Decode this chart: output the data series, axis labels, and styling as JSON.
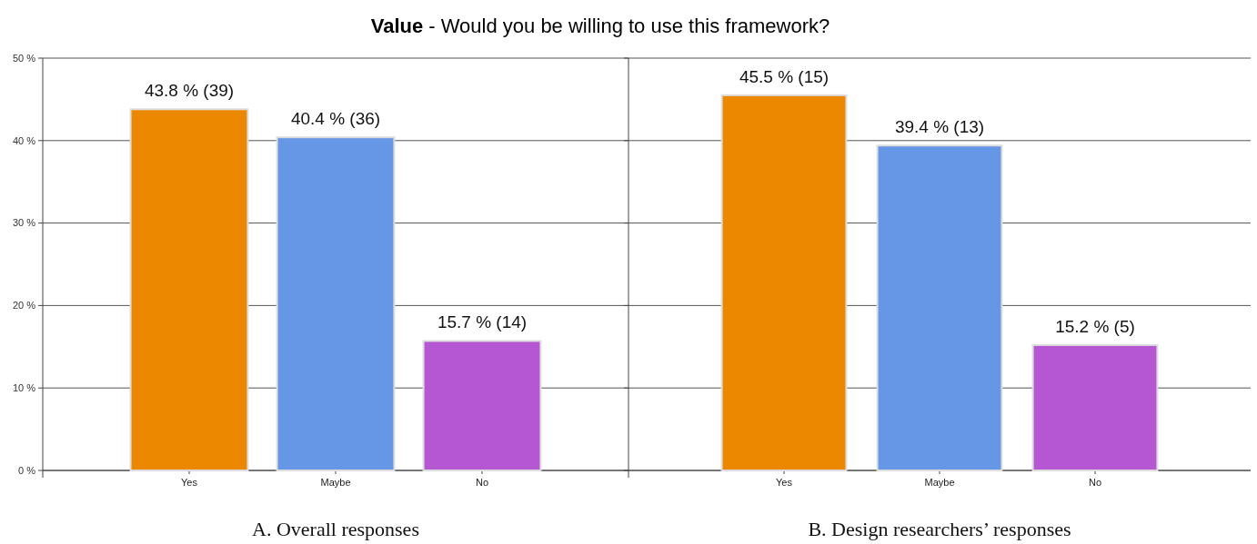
{
  "chart_data": [
    {
      "type": "bar",
      "title": "Value - Would you be willing to use this framework?",
      "xlabel": "A. Overall responses",
      "categories": [
        "Yes",
        "Maybe",
        "No"
      ],
      "values": [
        43.8,
        40.4,
        15.7
      ],
      "value_labels": [
        "43.8 % (39)",
        "40.4 % (36)",
        "15.7 % (14)"
      ],
      "colors": [
        "#ec8800",
        "#6597e6",
        "#b556d2"
      ],
      "ylim": [
        0,
        50
      ],
      "yticks": [
        {
          "value": 0,
          "label": "0 %"
        },
        {
          "value": 10,
          "label": "10 %"
        },
        {
          "value": 20,
          "label": "20 %"
        },
        {
          "value": 30,
          "label": "30 %"
        },
        {
          "value": 40,
          "label": "40 %"
        },
        {
          "value": 50,
          "label": "50 %"
        }
      ],
      "grid": "y"
    },
    {
      "type": "bar",
      "xlabel": "B. Design researchers’ responses",
      "categories": [
        "Yes",
        "Maybe",
        "No"
      ],
      "values": [
        45.5,
        39.4,
        15.2
      ],
      "value_labels": [
        "45.5 % (15)",
        "39.4 % (13)",
        "15.2 % (5)"
      ],
      "colors": [
        "#ec8800",
        "#6597e6",
        "#b556d2"
      ],
      "ylim": [
        0,
        50
      ],
      "yticks": [
        {
          "value": 0,
          "label": null
        },
        {
          "value": 10,
          "label": null
        },
        {
          "value": 20,
          "label": null
        },
        {
          "value": 30,
          "label": null
        },
        {
          "value": 40,
          "label": null
        },
        {
          "value": 50,
          "label": null
        }
      ],
      "grid": "y"
    }
  ]
}
